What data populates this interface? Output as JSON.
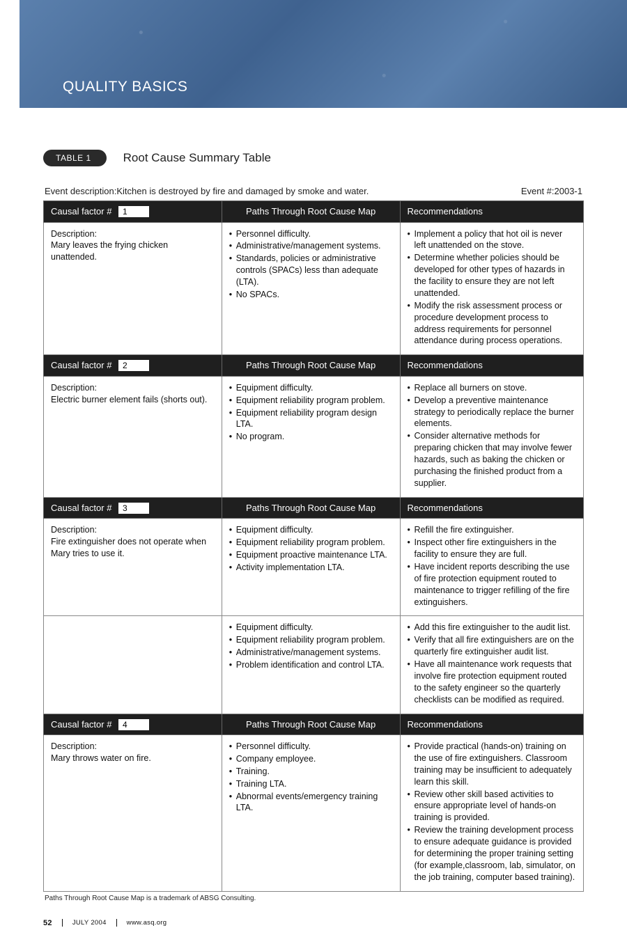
{
  "banner": {
    "title": "QUALITY BASICS"
  },
  "tableLabel": {
    "pill": "TABLE 1",
    "title": "Root Cause Summary Table"
  },
  "event": {
    "descLabel": "Event description:",
    "desc": "Kitchen is destroyed by fire and damaged by smoke and water.",
    "numLabel": "Event #:",
    "num": "2003-1"
  },
  "headers": {
    "causalFactor": "Causal factor #",
    "paths": "Paths Through Root Cause Map",
    "recs": "Recommendations",
    "descLabel": "Description:"
  },
  "factors": [
    {
      "num": "1",
      "desc": "Mary leaves the frying chicken unattended.",
      "paths": [
        "Personnel difficulty.",
        "Administrative/management systems.",
        "Standards, policies or administrative controls (SPACs) less than adequate (LTA).",
        "No SPACs."
      ],
      "recs": [
        "Implement a policy that hot oil is never left unattended on the stove.",
        "Determine whether policies should be developed for other types of hazards in the facility to ensure they are not left unattended.",
        "Modify the risk assessment process or procedure development process to address requirements for personnel attendance during process operations."
      ]
    },
    {
      "num": "2",
      "desc": "Electric burner element fails (shorts out).",
      "paths": [
        "Equipment difficulty.",
        "Equipment reliability program problem.",
        "Equipment reliability program design LTA.",
        "No program."
      ],
      "recs": [
        "Replace all burners on stove.",
        "Develop a preventive maintenance strategy to periodically replace the burner elements.",
        "Consider alternative methods for preparing chicken that may involve fewer hazards, such as baking the chicken or purchasing the finished product from a supplier."
      ]
    },
    {
      "num": "3",
      "desc": "Fire extinguisher does not operate when Mary tries to use it.",
      "paths": [
        "Equipment difficulty.",
        "Equipment reliability program problem.",
        "Equipment proactive maintenance LTA.",
        "Activity implementation LTA."
      ],
      "recs": [
        "Refill the fire extinguisher.",
        "Inspect other fire extinguishers in the facility to ensure they are full.",
        "Have incident reports describing the use of fire protection equipment routed to maintenance to trigger refilling of the fire extinguishers."
      ],
      "paths2": [
        "Equipment difficulty.",
        "Equipment reliability program problem.",
        "Administrative/management systems.",
        "Problem identification and control LTA."
      ],
      "recs2": [
        "Add this fire extinguisher to the audit list.",
        "Verify that all fire extinguishers are on the quarterly fire extinguisher audit list.",
        "Have all maintenance work requests that involve fire protection equipment routed to the safety engineer so the quarterly checklists can be modified as required."
      ]
    },
    {
      "num": "4",
      "desc": "Mary throws water on fire.",
      "paths": [
        "Personnel difficulty.",
        "Company employee.",
        "Training.",
        "Training LTA.",
        "Abnormal events/emergency training LTA."
      ],
      "recs": [
        "Provide practical (hands-on) training on the use of fire extinguishers. Classroom training may be insufficient to adequately learn this skill.",
        "Review other skill based activities to ensure appropriate level of hands-on training is provided.",
        "Review the training development process to ensure adequate guidance is provided for determining the proper training setting (for example,classroom, lab, simulator, on the job training, computer based training)."
      ]
    }
  ],
  "footnote": "Paths Through Root Cause Map is a trademark of ABSG Consulting.",
  "footer": {
    "page": "52",
    "date": "JULY 2004",
    "url": "www.asq.org"
  }
}
